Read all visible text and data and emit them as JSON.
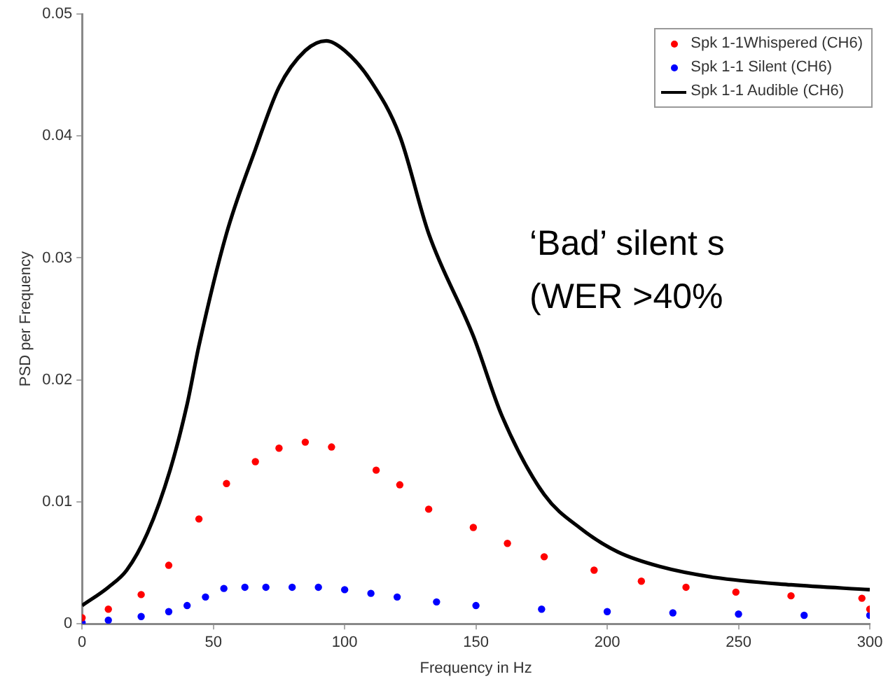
{
  "chart_data": {
    "type": "scatter",
    "xlabel": "Frequency in Hz",
    "ylabel": "PSD per Frequency",
    "xlim": [
      0,
      300
    ],
    "xticks": [
      0,
      50,
      100,
      150,
      200,
      250,
      300
    ],
    "ylim": [
      0,
      0.05
    ],
    "yticks": [
      0,
      0.01,
      0.02,
      0.03,
      0.04,
      0.05
    ],
    "grid": false,
    "legend": "top right",
    "marker": "circle",
    "annotations": [
      "‘Bad’ silent s",
      "(WER >40%"
    ],
    "series": [
      {
        "name": "Spk 1-1Whispered (CH6)",
        "color": "#ff0000",
        "x": [
          0,
          10,
          22.5,
          33,
          44.5,
          55,
          66,
          75,
          85,
          95,
          112,
          121,
          132,
          149,
          162,
          176,
          195,
          213,
          230,
          249,
          270,
          297,
          300
        ],
        "values": [
          0.0005,
          0.0012,
          0.0024,
          0.0048,
          0.0086,
          0.0115,
          0.0133,
          0.0144,
          0.0149,
          0.0145,
          0.0126,
          0.0114,
          0.0094,
          0.0079,
          0.0066,
          0.0055,
          0.0044,
          0.0035,
          0.003,
          0.0026,
          0.0023,
          0.0021,
          0.0012
        ]
      },
      {
        "name": "Spk 1-1 Silent (CH6)",
        "color": "#0000ff",
        "x": [
          0,
          10,
          22.5,
          33,
          40,
          47,
          54,
          62,
          70,
          80,
          90,
          100,
          110,
          120,
          135,
          150,
          175,
          200,
          225,
          250,
          275,
          300
        ],
        "values": [
          0.0001,
          0.0003,
          0.0006,
          0.001,
          0.0015,
          0.0022,
          0.0029,
          0.003,
          0.003,
          0.003,
          0.003,
          0.0028,
          0.0025,
          0.0022,
          0.0018,
          0.0015,
          0.0012,
          0.001,
          0.0009,
          0.0008,
          0.0007,
          0.0007
        ]
      },
      {
        "name": "Spk 1-1 Audible (CH6)",
        "color": "#000000",
        "type": "line",
        "marker": "none",
        "x": [
          0,
          10,
          17,
          25,
          33.5,
          40,
          44.5,
          55,
          66,
          75,
          85,
          93,
          100,
          110,
          121,
          132,
          149,
          160,
          176,
          190,
          204,
          220,
          241,
          270,
          300
        ],
        "values": [
          0.0015,
          0.003,
          0.0044,
          0.0075,
          0.0126,
          0.018,
          0.0228,
          0.032,
          0.0389,
          0.044,
          0.047,
          0.0478,
          0.047,
          0.0445,
          0.04,
          0.032,
          0.0236,
          0.017,
          0.0106,
          0.0078,
          0.0059,
          0.0047,
          0.0038,
          0.0032,
          0.0028
        ]
      }
    ]
  }
}
